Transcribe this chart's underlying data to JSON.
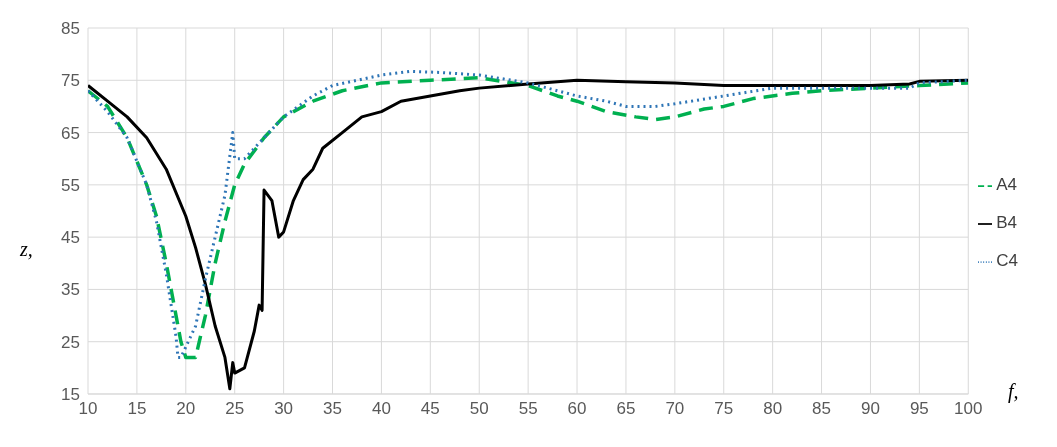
{
  "chart_data": {
    "type": "line",
    "xlabel": "f,",
    "ylabel": "z,",
    "xlim": [
      10,
      100
    ],
    "xticks": [
      10,
      15,
      20,
      25,
      30,
      35,
      40,
      45,
      50,
      55,
      60,
      65,
      70,
      75,
      80,
      85,
      90,
      95,
      100
    ],
    "ylim": [
      15,
      85
    ],
    "yticks": [
      15,
      25,
      35,
      45,
      55,
      65,
      75,
      85
    ],
    "grid": true,
    "legend": "right",
    "marker": "none",
    "series": [
      {
        "name": "A4",
        "color": "#00b050",
        "line_style": "dashed",
        "x": [
          10,
          12,
          14,
          16,
          17,
          18,
          19,
          19.5,
          20,
          21,
          22,
          23,
          24,
          25,
          26,
          28,
          30,
          33,
          36,
          40,
          45,
          50,
          55,
          58,
          60,
          63,
          66,
          68,
          70,
          73,
          75,
          78,
          82,
          85,
          90,
          95,
          100
        ],
        "values": [
          73,
          70,
          64,
          55,
          49,
          40,
          30,
          25,
          22,
          22,
          30,
          40,
          48,
          55,
          59,
          64,
          68,
          71,
          73,
          74.5,
          75,
          75.5,
          74,
          72,
          71,
          69,
          68,
          67.5,
          68,
          69.5,
          70,
          71.5,
          72.5,
          73,
          73.5,
          74,
          74.5
        ]
      },
      {
        "name": "B4",
        "color": "#000000",
        "line_style": "solid",
        "x": [
          10,
          12,
          14,
          16,
          18,
          20,
          21,
          22,
          23,
          24,
          24.5,
          24.8,
          25,
          26,
          27,
          27.5,
          27.8,
          28,
          28.8,
          29.5,
          30,
          31,
          32,
          33,
          34,
          36,
          38,
          40,
          42,
          45,
          48,
          50,
          55,
          58,
          60,
          65,
          70,
          75,
          80,
          85,
          90,
          94,
          95,
          100
        ],
        "values": [
          74,
          71,
          68,
          64,
          58,
          49,
          43,
          36,
          28,
          22,
          16,
          21,
          19,
          20,
          27,
          32,
          31,
          54,
          52,
          45,
          46,
          52,
          56,
          58,
          62,
          65,
          68,
          69,
          71,
          72,
          73,
          73.5,
          74.3,
          74.7,
          75,
          74.7,
          74.5,
          74,
          74,
          74,
          74,
          74.3,
          74.8,
          75
        ]
      },
      {
        "name": "C4",
        "color": "#2e75b6",
        "line_style": "dotted",
        "x": [
          10,
          12,
          14,
          16,
          17,
          18,
          19,
          19.2,
          19.5,
          20,
          21,
          22,
          23,
          24,
          24.8,
          25,
          26,
          28,
          30,
          33,
          35,
          40,
          43,
          46,
          50,
          55,
          58,
          60,
          63,
          65,
          68,
          70,
          75,
          80,
          85,
          90,
          94,
          95,
          100
        ],
        "values": [
          73,
          69,
          64,
          55,
          48,
          38,
          26,
          22,
          22,
          24,
          28,
          37,
          45,
          53,
          65,
          60,
          60,
          64,
          68,
          72,
          74,
          76,
          76.7,
          76.5,
          76,
          74.5,
          73,
          72,
          71,
          70,
          70,
          70.5,
          72,
          73.5,
          73.5,
          73.5,
          73.5,
          74.5,
          75
        ]
      }
    ]
  }
}
